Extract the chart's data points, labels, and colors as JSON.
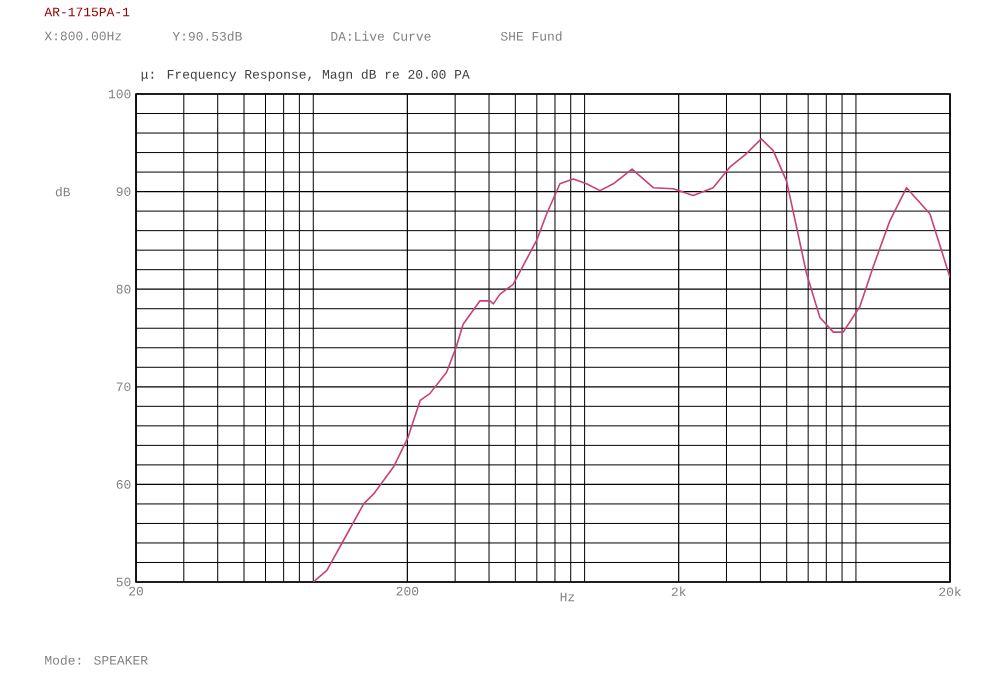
{
  "chart_data": {
    "type": "line",
    "title": "μ: Frequency Response, Magn dB re 20.00 PA",
    "xlabel": "Hz",
    "ylabel": "dB",
    "annotations": [
      "AR-1715PA-1",
      "X:800.00Hz",
      "Y:90.53dB",
      "DA:Live Curve",
      "SHE Fund",
      "Mode: SPEAKER"
    ],
    "log": "x",
    "grid": true,
    "marker": "none",
    "line_style": "solid",
    "xlim": [
      20,
      20000
    ],
    "ylim": [
      50,
      100
    ],
    "xticks": [
      {
        "value": 20,
        "label": "20"
      },
      {
        "value": 200,
        "label": "200"
      },
      {
        "value": 2000,
        "label": "2k"
      },
      {
        "value": 20000,
        "label": "20k"
      }
    ],
    "yticks": [
      50,
      60,
      70,
      80,
      90,
      100
    ],
    "x": [
      90,
      101,
      116,
      138,
      150,
      178,
      201,
      223,
      242,
      279,
      303,
      321,
      370,
      403,
      415,
      439,
      491,
      599,
      652,
      730,
      817,
      915,
      1026,
      1148,
      1346,
      1612,
      1910,
      2262,
      2680,
      3085,
      3556,
      4030,
      4460,
      4993,
      5435,
      5918,
      6630,
      7430,
      8075,
      9300,
      10420,
      12000,
      13830,
      16870,
      20000
    ],
    "series": [
      {
        "color": "#c8407a",
        "values": [
          50,
          51.2,
          54.2,
          58,
          59,
          61.8,
          64.8,
          68.6,
          69.3,
          71.5,
          74.1,
          76.4,
          78.8,
          78.8,
          78.5,
          79.5,
          80.5,
          85,
          87.7,
          90.8,
          91.3,
          90.8,
          90.1,
          90.8,
          92.3,
          90.4,
          90.3,
          89.6,
          90.4,
          92.5,
          93.9,
          95.4,
          94.2,
          91.1,
          86.4,
          81.6,
          77.1,
          75.6,
          75.6,
          78.2,
          82.3,
          87,
          90.4,
          87.7,
          81.2
        ]
      }
    ]
  }
}
